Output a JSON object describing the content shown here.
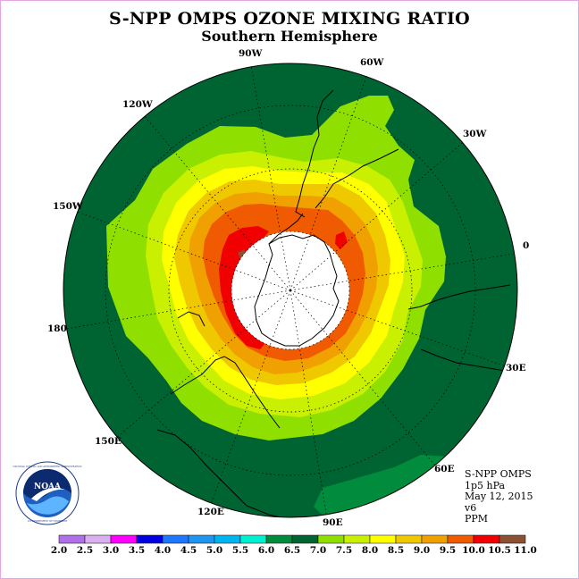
{
  "title": "S-NPP OMPS OZONE MIXING RATIO",
  "subtitle": "Southern Hemisphere",
  "info": {
    "instrument": "S-NPP OMPS",
    "level": "1p5 hPa",
    "date": "May 12, 2015",
    "version": "v6",
    "units": "PPM"
  },
  "longitude_labels": [
    "90W",
    "60W",
    "30W",
    "0",
    "30E",
    "60E",
    "90E",
    "120E",
    "150E",
    "180",
    "150W",
    "120W"
  ],
  "colorbar": {
    "labels": [
      "2.0",
      "2.5",
      "3.0",
      "3.5",
      "4.0",
      "4.5",
      "5.0",
      "5.5",
      "6.0",
      "6.5",
      "7.0",
      "7.5",
      "8.0",
      "8.5",
      "9.0",
      "9.5",
      "10.0",
      "10.5",
      "11.0"
    ],
    "colors": [
      "#b070e8",
      "#d8b0f0",
      "#ff00ff",
      "#0000e0",
      "#1e78ff",
      "#1e96f0",
      "#00b4f0",
      "#00f0d0",
      "#008c3c",
      "#006432",
      "#8fe000",
      "#c8f000",
      "#ffff00",
      "#f0c800",
      "#f0a000",
      "#f05a00",
      "#f00000",
      "#8c5032"
    ]
  },
  "logo": {
    "text": "NOAA",
    "ring_text": "NATIONAL OCEANIC AND ATMOSPHERIC ADMINISTRATION",
    "ring_text_bottom": "U.S. DEPARTMENT OF COMMERCE"
  },
  "colors": {
    "background_green": "#006432",
    "pole_hole": "#ffffff",
    "bright_green_patch": "#008c3c"
  }
}
